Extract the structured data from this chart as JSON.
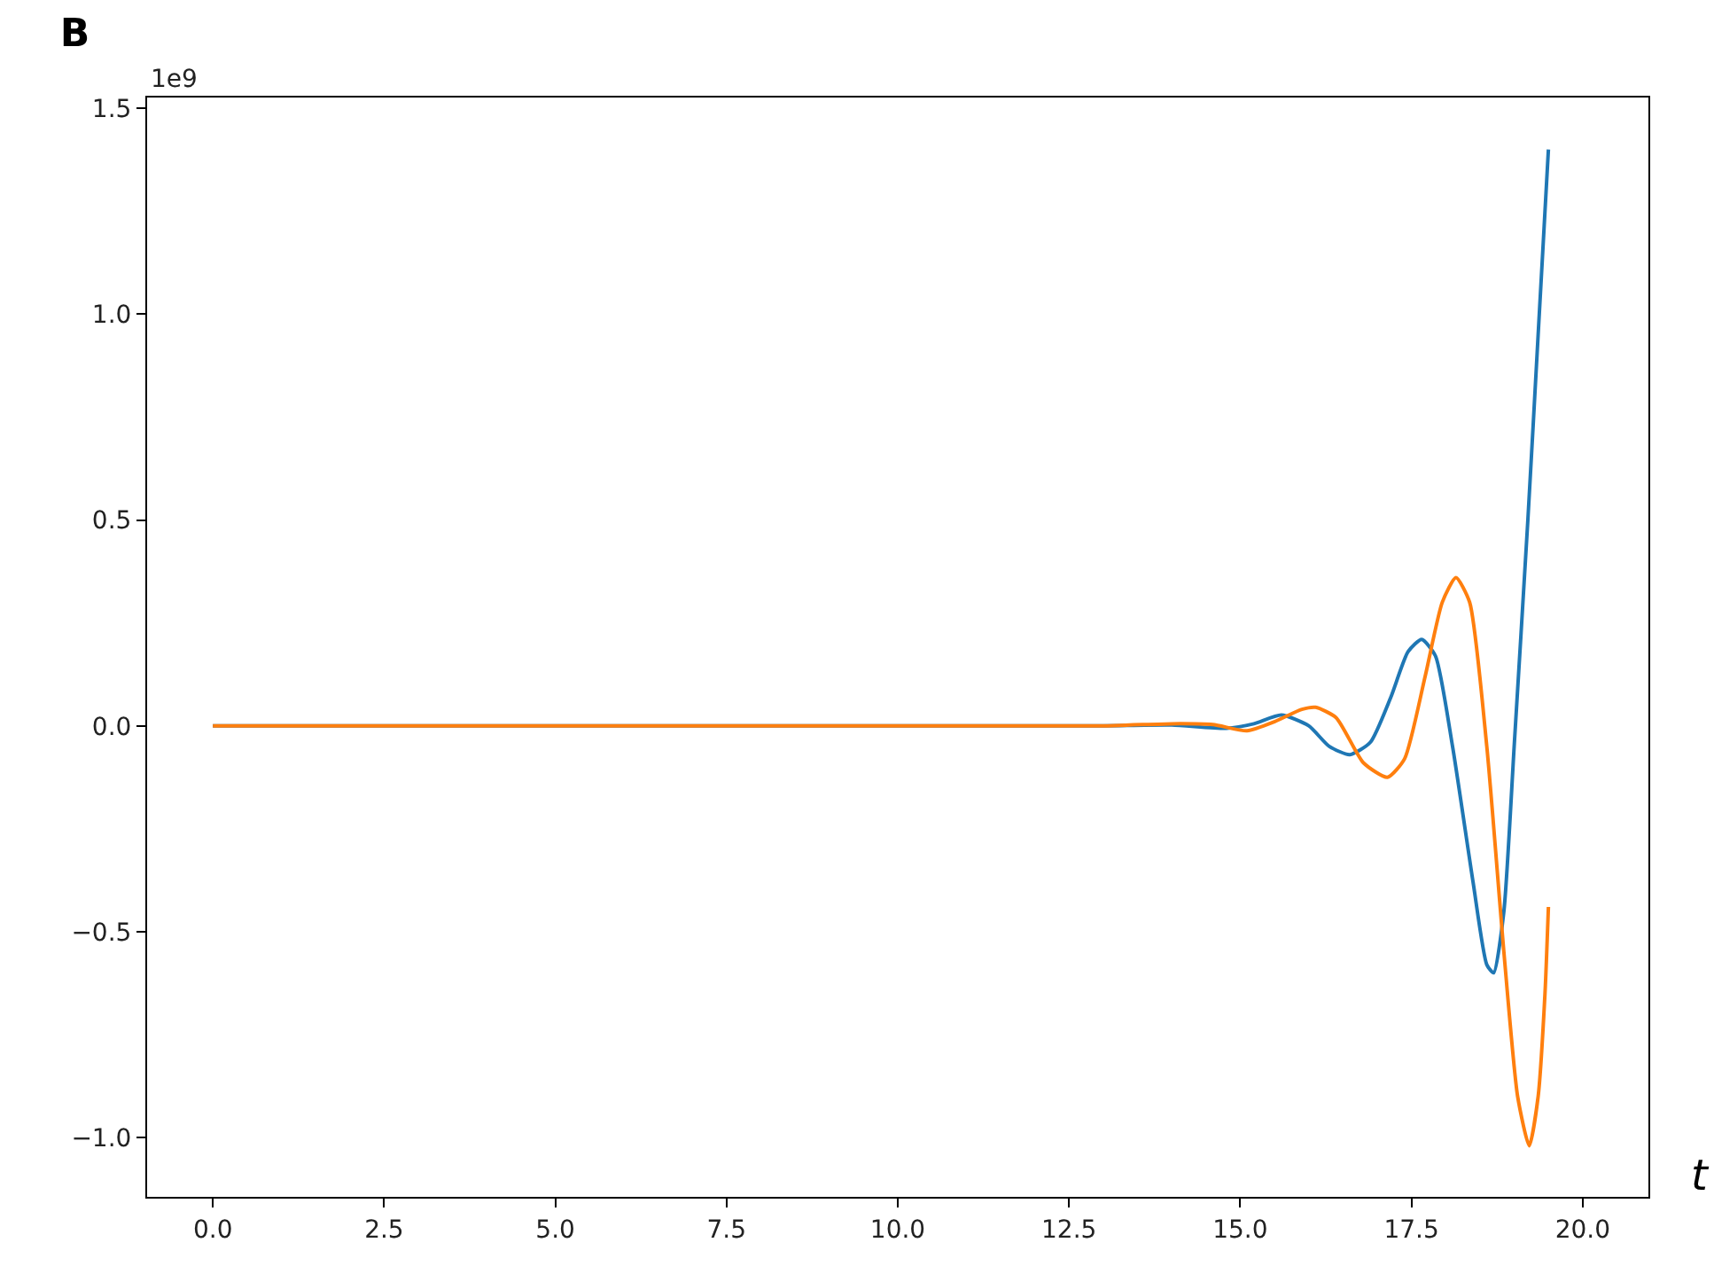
{
  "chart_data": {
    "type": "line",
    "title": "B",
    "xlabel": "t",
    "annotations": [
      "1e9"
    ],
    "series": [
      {
        "color": "#1f77b4",
        "x": [
          0,
          13,
          14,
          14.8,
          15.2,
          15.6,
          16.0,
          16.3,
          16.6,
          16.9,
          17.2,
          17.45,
          17.65,
          17.85,
          18.1,
          18.4,
          18.6,
          18.7,
          18.85,
          19.0,
          19.2,
          19.35,
          19.5
        ],
        "values": [
          0,
          0,
          0.002,
          -0.006,
          0.005,
          0.026,
          0.0,
          -0.05,
          -0.07,
          -0.04,
          0.07,
          0.18,
          0.21,
          0.17,
          -0.05,
          -0.38,
          -0.58,
          -0.6,
          -0.45,
          -0.05,
          0.5,
          0.95,
          1.4
        ]
      },
      {
        "color": "#ff7f0e",
        "x": [
          0,
          13,
          14,
          14.6,
          15.1,
          15.5,
          15.9,
          16.1,
          16.4,
          16.8,
          17.15,
          17.4,
          17.7,
          17.95,
          18.15,
          18.35,
          18.6,
          18.85,
          19.05,
          19.22,
          19.35,
          19.45,
          19.5
        ],
        "values": [
          0,
          0,
          0.005,
          0.003,
          -0.012,
          0.01,
          0.04,
          0.045,
          0.02,
          -0.09,
          -0.125,
          -0.08,
          0.12,
          0.3,
          0.36,
          0.3,
          -0.05,
          -0.55,
          -0.9,
          -1.02,
          -0.9,
          -0.65,
          -0.44
        ]
      }
    ],
    "xlim": [
      -0.96,
      20.96
    ],
    "xticks": [
      {
        "value": 0,
        "label": "0.0"
      },
      2.5,
      {
        "value": 5,
        "label": "5.0"
      },
      7.5,
      {
        "value": 10,
        "label": "10.0"
      },
      12.5,
      {
        "value": 15,
        "label": "15.0"
      },
      17.5,
      {
        "value": 20,
        "label": "20.0"
      }
    ],
    "ylim": [
      -1.144,
      1.526
    ],
    "yticks": [
      {
        "value": -1,
        "label": "−1.0"
      },
      {
        "value": -0.5,
        "label": "−0.5"
      },
      {
        "value": 0,
        "label": "0.0"
      },
      0.5,
      {
        "value": 1,
        "label": "1.0"
      },
      1.5
    ],
    "tick_labels": [
      "x",
      "y"
    ]
  }
}
